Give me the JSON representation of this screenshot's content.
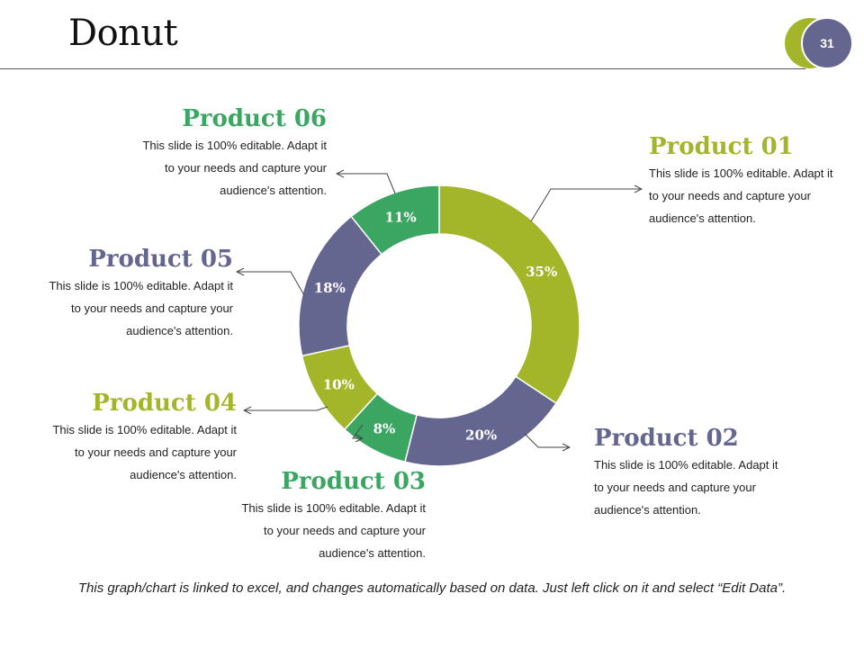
{
  "slide": {
    "title": "Donut",
    "page_number": "31",
    "footer": "This graph/chart is linked to excel, and changes automatically based on data. Just left click on it and select “Edit Data”."
  },
  "colors": {
    "green": "#a3b62a",
    "navy": "#656690",
    "teal": "#3aa662"
  },
  "products": [
    {
      "name": "Product 01",
      "text": "This slide is 100% editable. Adapt it to your needs and capture your audience's attention."
    },
    {
      "name": "Product 02",
      "text": "This slide is 100% editable. Adapt it to your needs and capture your audience's attention."
    },
    {
      "name": "Product 03",
      "text": "This slide is 100% editable. Adapt it to your needs and capture your audience's attention."
    },
    {
      "name": "Product 04",
      "text": "This slide is 100% editable. Adapt it to your needs and capture your audience's attention."
    },
    {
      "name": "Product 05",
      "text": "This slide is 100% editable. Adapt it to your needs and capture your audience's attention."
    },
    {
      "name": "Product 06",
      "text": "This slide is 100% editable. Adapt it to your needs and capture your audience's attention."
    }
  ],
  "chart_data": {
    "type": "pie",
    "title": "",
    "legend": "none",
    "categories": [
      "Product 01",
      "Product 02",
      "Product 03",
      "Product 04",
      "Product 05",
      "Product 06"
    ],
    "values": [
      35,
      20,
      8,
      10,
      18,
      11
    ],
    "labels": [
      "35%",
      "20%",
      "8%",
      "10%",
      "18%",
      "11%"
    ],
    "colors": [
      "#a3b62a",
      "#656690",
      "#3aa662",
      "#a3b62a",
      "#656690",
      "#3aa662"
    ]
  }
}
